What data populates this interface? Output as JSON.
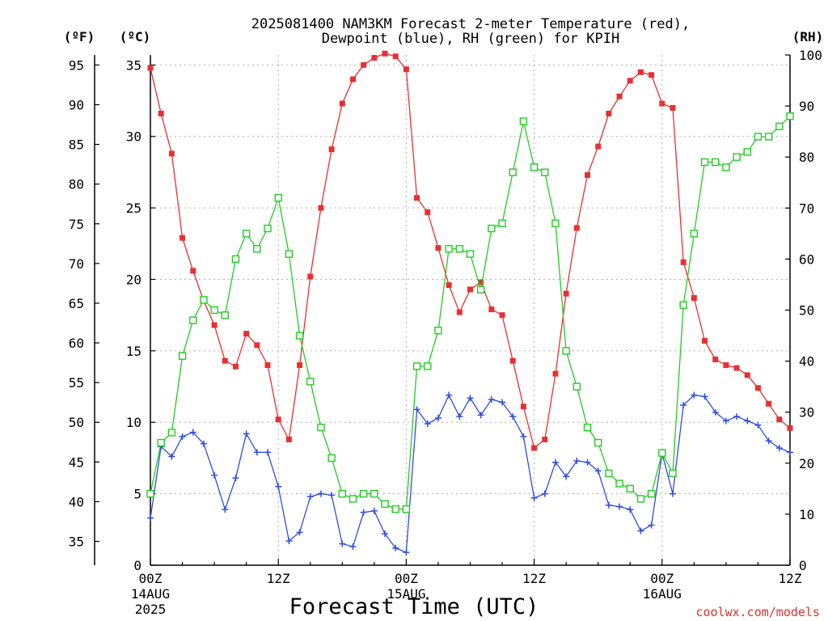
{
  "title": {
    "line1": "2025081400 NAM3KM Forecast 2-meter Temperature (red),",
    "line2": "Dewpoint (blue), RH (green) for KPIH"
  },
  "watermark": "coolwx.com/models",
  "chart_data": {
    "type": "line",
    "xlabel": "Forecast Time (UTC)",
    "x_range_hours": [
      0,
      60
    ],
    "x_ticks": [
      {
        "hour": 0,
        "label": "00Z",
        "sub1": "14AUG",
        "sub2": "2025"
      },
      {
        "hour": 12,
        "label": "12Z",
        "sub1": "",
        "sub2": ""
      },
      {
        "hour": 24,
        "label": "00Z",
        "sub1": "15AUG",
        "sub2": ""
      },
      {
        "hour": 36,
        "label": "12Z",
        "sub1": "",
        "sub2": ""
      },
      {
        "hour": 48,
        "label": "00Z",
        "sub1": "16AUG",
        "sub2": ""
      },
      {
        "hour": 60,
        "label": "12Z",
        "sub1": "",
        "sub2": ""
      }
    ],
    "axes": {
      "fahrenheit": {
        "label": "(ºF)",
        "ticks": [
          35,
          40,
          45,
          50,
          55,
          60,
          65,
          70,
          75,
          80,
          85,
          90,
          95
        ]
      },
      "celsius": {
        "label": "(ºC)",
        "ticks": [
          0,
          5,
          10,
          15,
          20,
          25,
          30,
          35
        ],
        "range": [
          0,
          35.7
        ]
      },
      "rh": {
        "label": "(RH)",
        "ticks": [
          0,
          10,
          20,
          30,
          40,
          50,
          60,
          70,
          80,
          90,
          100
        ],
        "range": [
          0,
          100
        ]
      }
    },
    "grid": true,
    "series": [
      {
        "name": "Temperature",
        "unit": "C",
        "color": "#e83030",
        "marker": "filled-square",
        "values": [
          34.8,
          31.6,
          28.8,
          22.9,
          20.6,
          18.5,
          16.8,
          14.3,
          13.9,
          16.2,
          15.4,
          14.0,
          10.2,
          8.8,
          14.0,
          20.2,
          25.0,
          29.1,
          32.3,
          34.0,
          35.0,
          35.5,
          35.8,
          35.6,
          34.7,
          25.7,
          24.7,
          22.2,
          19.6,
          17.7,
          19.3,
          19.8,
          17.9,
          17.5,
          14.3,
          11.1,
          8.2,
          8.8,
          13.4,
          19.0,
          23.6,
          27.3,
          29.3,
          31.6,
          32.8,
          33.9,
          34.5,
          34.3,
          32.3,
          32.0,
          21.2,
          18.7,
          15.7,
          14.4,
          14.0,
          13.8,
          13.3,
          12.4,
          11.3,
          10.2,
          9.6
        ]
      },
      {
        "name": "Dewpoint",
        "unit": "C",
        "color": "#2f4de0",
        "marker": "plus",
        "values": [
          3.3,
          8.3,
          7.6,
          9.0,
          9.3,
          8.5,
          6.3,
          3.9,
          6.1,
          9.2,
          7.9,
          7.9,
          5.5,
          1.7,
          2.3,
          4.8,
          5.0,
          4.9,
          1.5,
          1.3,
          3.7,
          3.8,
          2.2,
          1.2,
          0.9,
          10.9,
          9.9,
          10.3,
          11.9,
          10.4,
          11.7,
          10.5,
          11.6,
          11.4,
          10.4,
          9.0,
          4.7,
          5.0,
          7.2,
          6.2,
          7.3,
          7.2,
          6.6,
          4.2,
          4.1,
          3.9,
          2.4,
          2.8,
          7.8,
          5.0,
          11.2,
          11.9,
          11.8,
          10.7,
          10.1,
          10.4,
          10.1,
          9.8,
          8.7,
          8.2,
          7.9
        ]
      },
      {
        "name": "RH",
        "unit": "%",
        "color": "#22cc22",
        "marker": "open-square",
        "values": [
          14,
          24,
          26,
          41,
          48,
          52,
          50,
          49,
          60,
          65,
          62,
          66,
          72,
          61,
          45,
          36,
          27,
          21,
          14,
          13,
          14,
          14,
          12,
          11,
          11,
          39,
          39,
          46,
          62,
          62,
          61,
          54,
          66,
          67,
          77,
          87,
          78,
          77,
          67,
          42,
          35,
          27,
          24,
          18,
          16,
          15,
          13,
          14,
          22,
          18,
          51,
          65,
          79,
          79,
          78,
          80,
          81,
          84,
          84,
          86,
          88
        ]
      }
    ]
  }
}
